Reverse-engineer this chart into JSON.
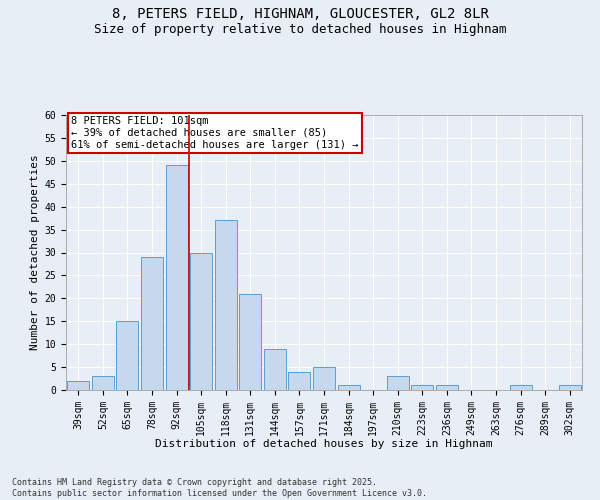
{
  "title_line1": "8, PETERS FIELD, HIGHNAM, GLOUCESTER, GL2 8LR",
  "title_line2": "Size of property relative to detached houses in Highnam",
  "xlabel": "Distribution of detached houses by size in Highnam",
  "ylabel": "Number of detached properties",
  "bar_color": "#c5d8ed",
  "bar_edge_color": "#5a9fd4",
  "background_color": "#e8eef5",
  "grid_color": "#ffffff",
  "categories": [
    "39sqm",
    "52sqm",
    "65sqm",
    "78sqm",
    "92sqm",
    "105sqm",
    "118sqm",
    "131sqm",
    "144sqm",
    "157sqm",
    "171sqm",
    "184sqm",
    "197sqm",
    "210sqm",
    "223sqm",
    "236sqm",
    "249sqm",
    "263sqm",
    "276sqm",
    "289sqm",
    "302sqm"
  ],
  "values": [
    2,
    3,
    15,
    29,
    49,
    30,
    37,
    21,
    9,
    4,
    5,
    1,
    0,
    3,
    1,
    1,
    0,
    0,
    1,
    0,
    1
  ],
  "ylim": [
    0,
    60
  ],
  "yticks": [
    0,
    5,
    10,
    15,
    20,
    25,
    30,
    35,
    40,
    45,
    50,
    55,
    60
  ],
  "vline_x": 4.5,
  "vline_color": "#cc0000",
  "annotation_text": "8 PETERS FIELD: 101sqm\n← 39% of detached houses are smaller (85)\n61% of semi-detached houses are larger (131) →",
  "annotation_box_color": "#ffffff",
  "annotation_box_edge": "#cc0000",
  "footer_text": "Contains HM Land Registry data © Crown copyright and database right 2025.\nContains public sector information licensed under the Open Government Licence v3.0.",
  "title_fontsize": 10,
  "subtitle_fontsize": 9,
  "axis_label_fontsize": 8,
  "tick_fontsize": 7,
  "annotation_fontsize": 7.5,
  "footer_fontsize": 6
}
